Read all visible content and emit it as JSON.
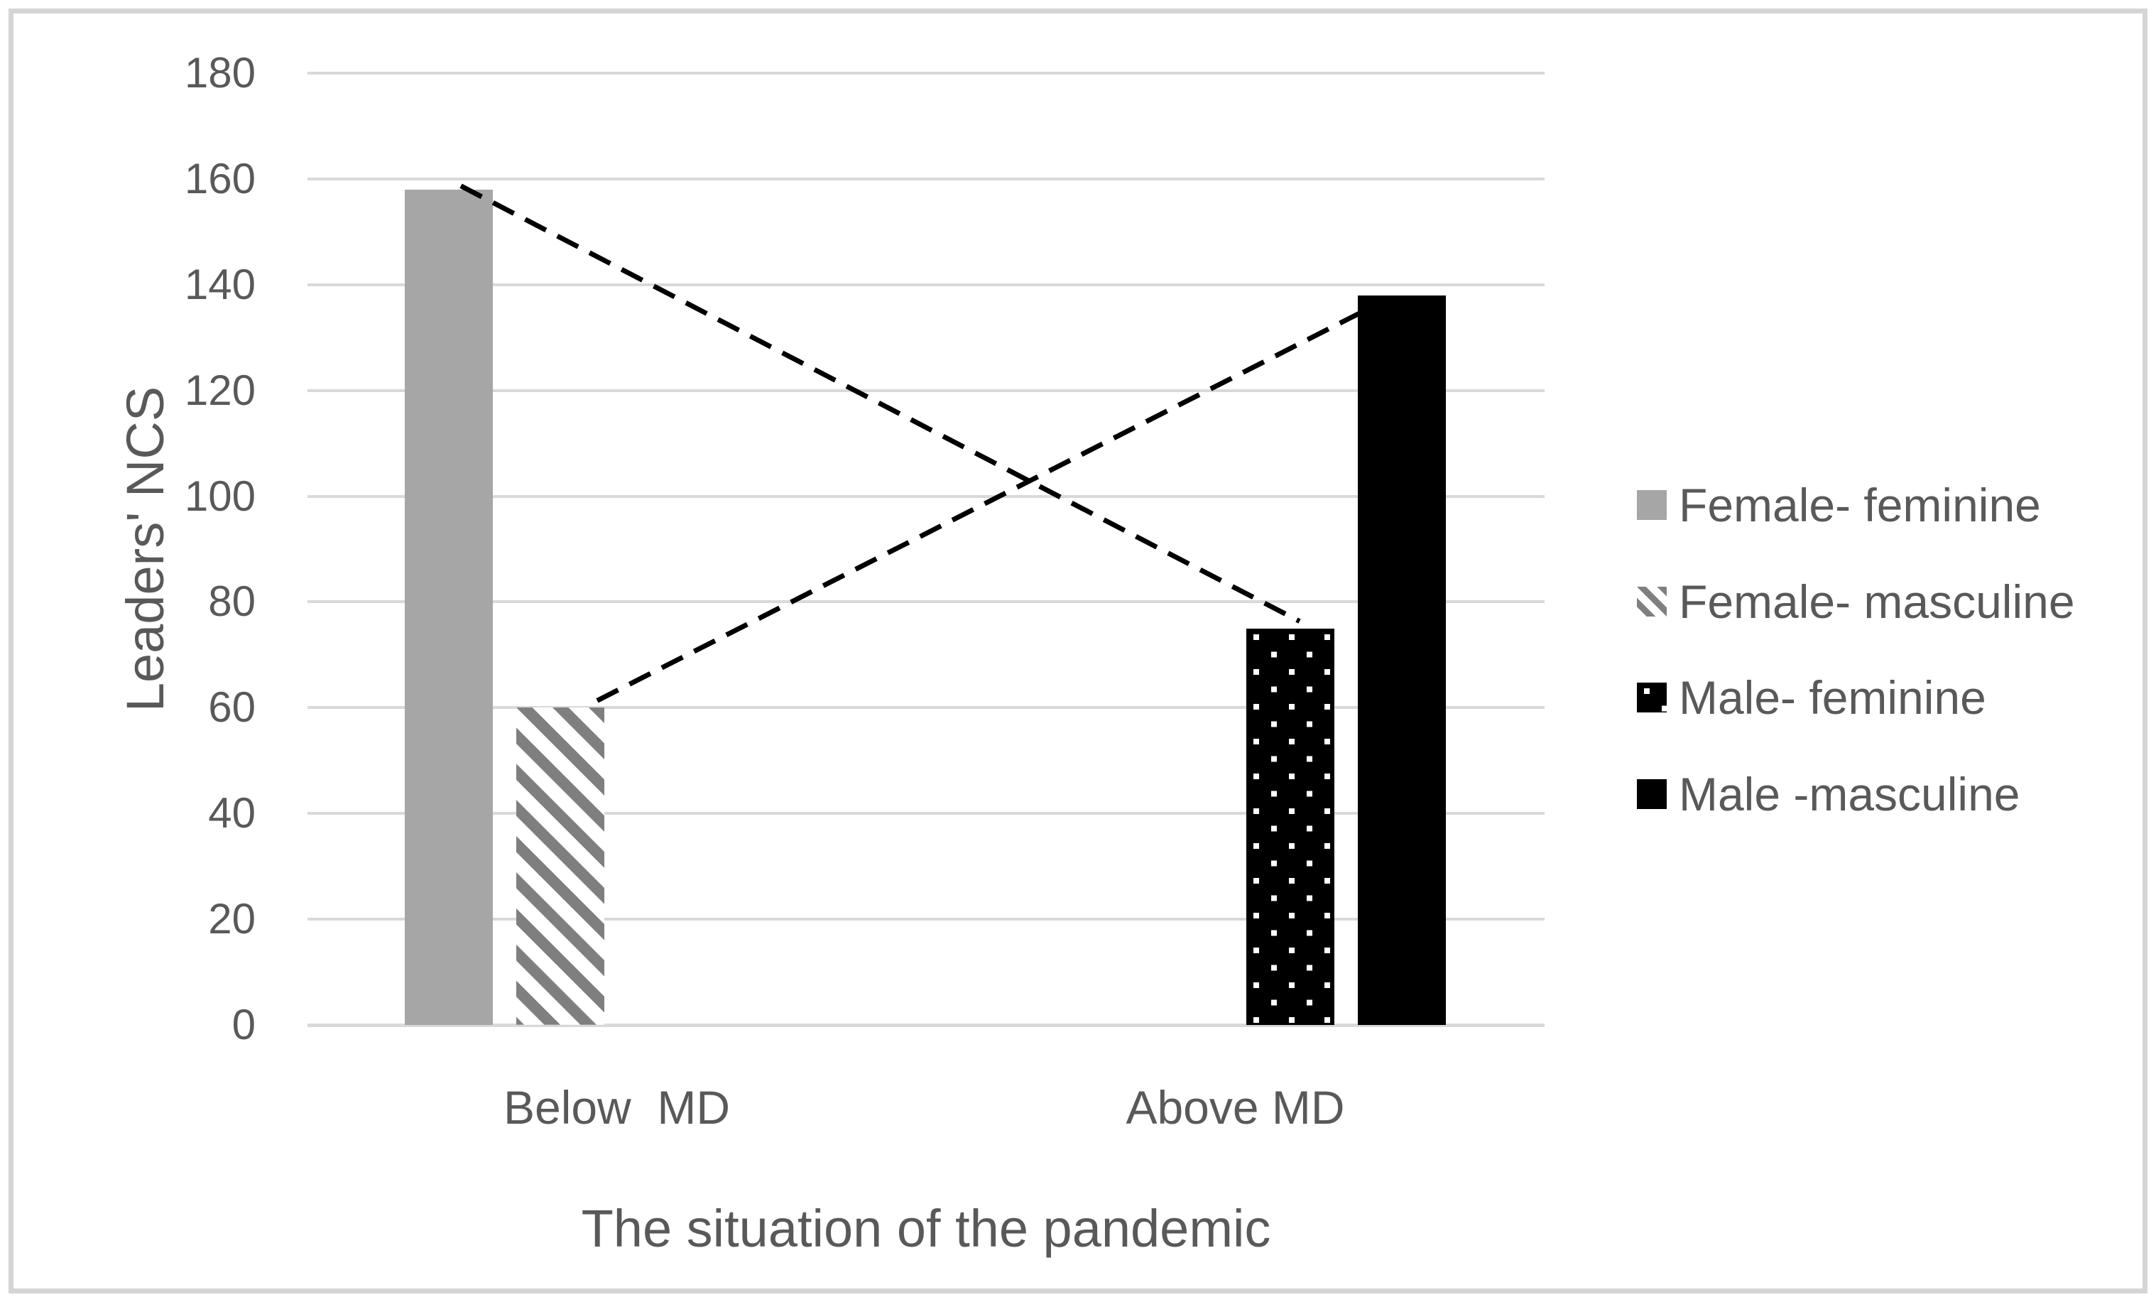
{
  "chart_data": {
    "type": "bar",
    "title": "",
    "xlabel": "The situation of the pandemic",
    "ylabel": "Leaders' NCS",
    "categories": [
      "Below  MD",
      "Above MD"
    ],
    "yticks": [
      "0",
      "20",
      "40",
      "60",
      "80",
      "100",
      "120",
      "140",
      "160",
      "180"
    ],
    "ylim": [
      0,
      180
    ],
    "ytick_step": 20,
    "grid": true,
    "legend_position": "right",
    "series": [
      {
        "name": "Female- feminine",
        "style": "solid",
        "color": "#a6a6a6",
        "values": [
          158,
          null
        ]
      },
      {
        "name": "Female- masculine",
        "style": "diagonal-stripes",
        "color": "#7f7f7f",
        "values": [
          60,
          null
        ]
      },
      {
        "name": "Male- feminine",
        "style": "white-dots-on-black",
        "color": "#000000",
        "values": [
          null,
          75
        ]
      },
      {
        "name": "Male -masculine",
        "style": "solid",
        "color": "#000000",
        "values": [
          null,
          138
        ]
      }
    ],
    "connector_lines": [
      {
        "style": "dashed",
        "color": "#000000",
        "from": {
          "category": 0,
          "series": 0
        },
        "to": {
          "category": 1,
          "series": 2
        }
      },
      {
        "style": "dashed",
        "color": "#000000",
        "from": {
          "category": 0,
          "series": 1
        },
        "to": {
          "category": 1,
          "series": 3
        }
      }
    ],
    "colors": {
      "gridline": "#d9d9d9",
      "axis_line": "#d9d9d9",
      "text": "#595959",
      "figure_border": "#d5d5d5",
      "background": "#ffffff"
    }
  }
}
